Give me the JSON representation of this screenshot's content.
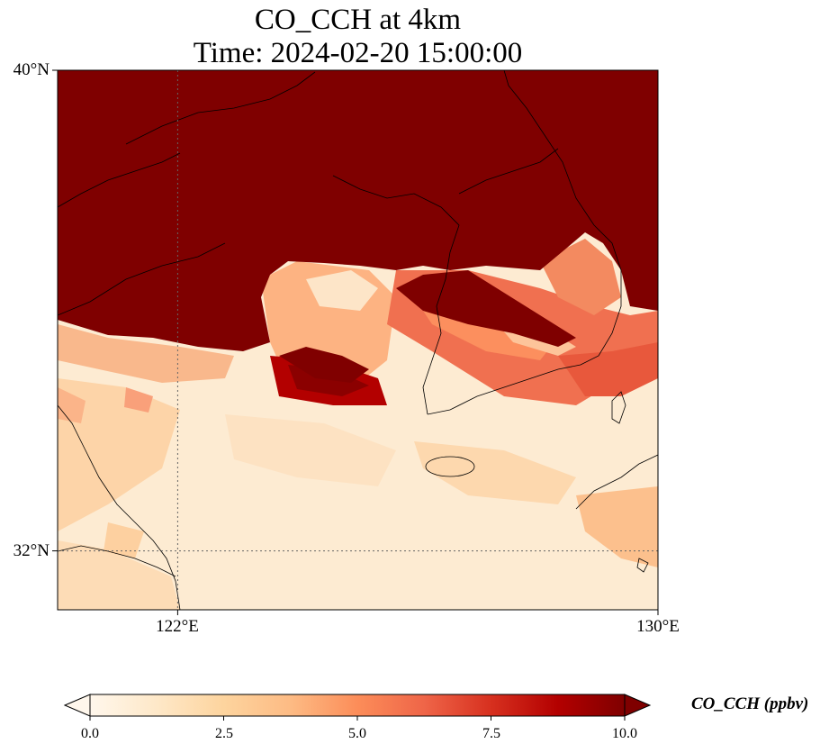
{
  "title": {
    "line1": "CO_CCH at 4km",
    "line2": "Time: 2024-02-20 15:00:00"
  },
  "map": {
    "variable": "CO_CCH",
    "level": "4km",
    "time": "2024-02-20 15:00:00",
    "extent": {
      "lon_min": 120,
      "lon_max": 130,
      "lat_min": 31,
      "lat_max": 40
    },
    "gridlines": {
      "lons": [
        122
      ],
      "lats": [
        32
      ],
      "style": "dotted"
    },
    "lat_labels": [
      {
        "lat": 40,
        "text": "40°N"
      },
      {
        "lat": 32,
        "text": "32°N"
      }
    ],
    "lon_labels": [
      {
        "lon": 122,
        "text": "122°E"
      },
      {
        "lon": 130,
        "text": "130°E"
      }
    ],
    "coastlines": true,
    "colormap": "OrRd",
    "field_summary": "Saturated high values (>=10 ppbv) north of roughly 35-37°N; lower values (0-4 ppbv) over the southern Yellow Sea and East China Sea, with elevated bands extending east-southeast over the Korean Peninsula"
  },
  "colorbar": {
    "label": "CO_CCH (ppbv)",
    "min": 0,
    "max": 10,
    "extend": "both",
    "ticks": [
      {
        "value": 0,
        "label": "0.0"
      },
      {
        "value": 2.5,
        "label": "2.5"
      },
      {
        "value": 5,
        "label": "5.0"
      },
      {
        "value": 7.5,
        "label": "7.5"
      },
      {
        "value": 10,
        "label": "10.0"
      }
    ],
    "colors": [
      "#fff7ec",
      "#fee8c8",
      "#fdd49e",
      "#fdbb84",
      "#fc8d59",
      "#ef6548",
      "#d7301f",
      "#b30000",
      "#7f0000"
    ]
  }
}
